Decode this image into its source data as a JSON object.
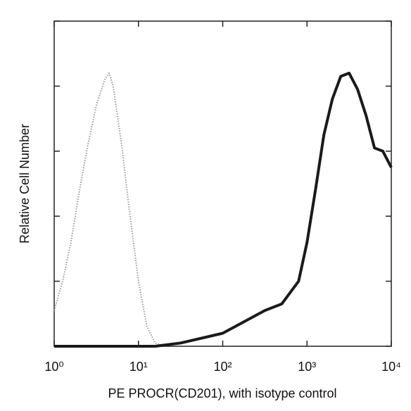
{
  "chart_data": {
    "type": "line",
    "xlabel": "PE PROCR(CD201), with isotype control",
    "ylabel": "Relative Cell Number",
    "xscale": "log",
    "xlim": [
      1,
      10000
    ],
    "xticks": [
      {
        "value": 1,
        "label": "10⁰"
      },
      {
        "value": 10,
        "label": "10¹"
      },
      {
        "value": 100,
        "label": "10²"
      },
      {
        "value": 1000,
        "label": "10³"
      },
      {
        "value": 10000,
        "label": "10⁴"
      }
    ],
    "ylim": [
      0,
      100
    ],
    "yticks": [
      0,
      20,
      40,
      60,
      80,
      100
    ],
    "series": [
      {
        "color": "#9a9a9a",
        "dashed": true,
        "x": [
          1,
          1.26,
          1.58,
          2,
          2.51,
          3.16,
          3.98,
          4.47,
          5.01,
          6.31,
          7.94,
          10,
          12.6,
          15.8,
          20
        ],
        "values": [
          11,
          20,
          32,
          48,
          62,
          74,
          82,
          84,
          80,
          62,
          40,
          20,
          6,
          1,
          0
        ]
      },
      {
        "color": "#1a1a1a",
        "dashed": false,
        "x": [
          1,
          3.16,
          10,
          15.8,
          31.6,
          100,
          316,
          501,
          794,
          1000,
          1259,
          1585,
          1995,
          2512,
          3162,
          3981,
          5012,
          6310,
          7943,
          10000
        ],
        "values": [
          0,
          0,
          0,
          0,
          1,
          4,
          11,
          13,
          20,
          32,
          48,
          65,
          76,
          83,
          84,
          79,
          71,
          61,
          60,
          55
        ]
      }
    ]
  }
}
